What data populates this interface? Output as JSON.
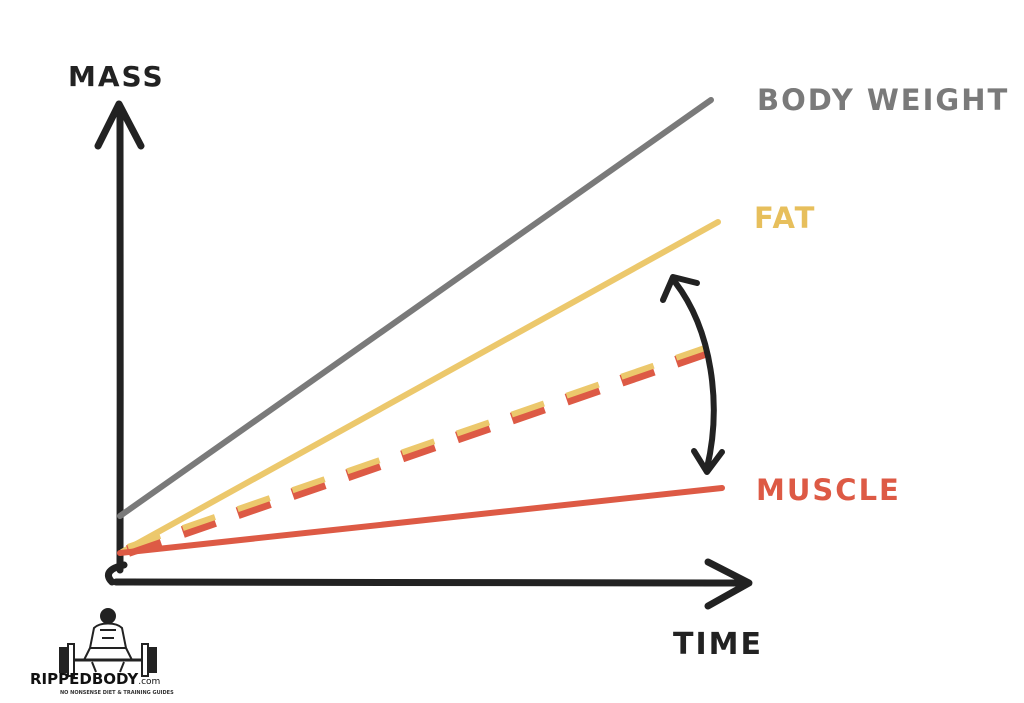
{
  "labels": {
    "y_axis": "MASS",
    "x_axis": "TIME",
    "body_weight": "BODY WEIGHT",
    "fat": "FAT",
    "muscle": "MUSCLE"
  },
  "colors": {
    "axis": "#222222",
    "body_weight": "#7a7a7a",
    "fat": "#ecc86c",
    "muscle": "#dd5a45"
  },
  "logo": {
    "name_a": "RIPPED",
    "name_b": "BODY",
    "domain": ".com",
    "tagline": "NO NONSENSE DIET & TRAINING GUIDES"
  }
}
